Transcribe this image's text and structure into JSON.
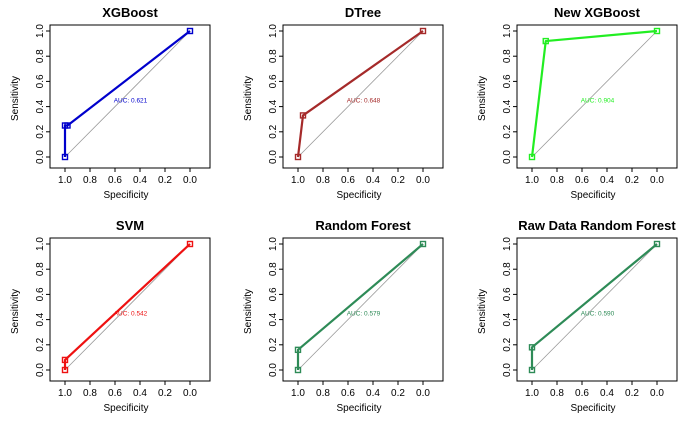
{
  "chart_data": [
    {
      "type": "line",
      "title": "XGBoost",
      "xlabel": "Specificity",
      "ylabel": "Sensitivity",
      "xlim": [
        1.0,
        0.0
      ],
      "ylim": [
        0.0,
        1.0
      ],
      "x_ticks": [
        "1.0",
        "0.8",
        "0.6",
        "0.4",
        "0.2",
        "0.0"
      ],
      "y_ticks": [
        "0.0",
        "0.2",
        "0.4",
        "0.6",
        "0.8",
        "1.0"
      ],
      "color": "#0000cc",
      "series": [
        {
          "x": [
            1.0,
            1.0,
            0.98,
            0.0
          ],
          "y": [
            0.0,
            0.25,
            0.25,
            1.0
          ]
        }
      ],
      "diagonal": true,
      "annotation": "AUC: 0.621"
    },
    {
      "type": "line",
      "title": "DTree",
      "xlabel": "Specificity",
      "ylabel": "Sensitivity",
      "xlim": [
        1.0,
        0.0
      ],
      "ylim": [
        0.0,
        1.0
      ],
      "x_ticks": [
        "1.0",
        "0.8",
        "0.6",
        "0.4",
        "0.2",
        "0.0"
      ],
      "y_ticks": [
        "0.0",
        "0.2",
        "0.4",
        "0.6",
        "0.8",
        "1.0"
      ],
      "color": "#a52a2a",
      "series": [
        {
          "x": [
            1.0,
            0.96,
            0.0
          ],
          "y": [
            0.0,
            0.33,
            1.0
          ]
        }
      ],
      "diagonal": true,
      "annotation": "AUC: 0.648"
    },
    {
      "type": "line",
      "title": "New XGBoost",
      "xlabel": "Specificity",
      "ylabel": "Sensitivity",
      "xlim": [
        1.0,
        0.0
      ],
      "ylim": [
        0.0,
        1.0
      ],
      "x_ticks": [
        "1.0",
        "0.8",
        "0.6",
        "0.4",
        "0.2",
        "0.0"
      ],
      "y_ticks": [
        "0.0",
        "0.2",
        "0.4",
        "0.6",
        "0.8",
        "1.0"
      ],
      "color": "#22ee22",
      "series": [
        {
          "x": [
            1.0,
            0.89,
            0.0
          ],
          "y": [
            0.0,
            0.92,
            1.0
          ]
        }
      ],
      "diagonal": true,
      "annotation": "AUC: 0.904"
    },
    {
      "type": "line",
      "title": "SVM",
      "xlabel": "Specificity",
      "ylabel": "Sensitivity",
      "xlim": [
        1.0,
        0.0
      ],
      "ylim": [
        0.0,
        1.0
      ],
      "x_ticks": [
        "1.0",
        "0.8",
        "0.6",
        "0.4",
        "0.2",
        "0.0"
      ],
      "y_ticks": [
        "0.0",
        "0.2",
        "0.4",
        "0.6",
        "0.8",
        "1.0"
      ],
      "color": "#ee1111",
      "series": [
        {
          "x": [
            1.0,
            1.0,
            0.0
          ],
          "y": [
            0.0,
            0.08,
            1.0
          ]
        }
      ],
      "diagonal": true,
      "annotation": "AUC: 0.542"
    },
    {
      "type": "line",
      "title": "Random Forest",
      "xlabel": "Specificity",
      "ylabel": "Sensitivity",
      "xlim": [
        1.0,
        0.0
      ],
      "ylim": [
        0.0,
        1.0
      ],
      "x_ticks": [
        "1.0",
        "0.8",
        "0.6",
        "0.4",
        "0.2",
        "0.0"
      ],
      "y_ticks": [
        "0.0",
        "0.2",
        "0.4",
        "0.6",
        "0.8",
        "1.0"
      ],
      "color": "#2e8b57",
      "series": [
        {
          "x": [
            1.0,
            1.0,
            0.0
          ],
          "y": [
            0.0,
            0.16,
            1.0
          ]
        }
      ],
      "diagonal": true,
      "annotation": "AUC: 0.579"
    },
    {
      "type": "line",
      "title": "Raw Data Random Forest",
      "xlabel": "Specificity",
      "ylabel": "Sensitivity",
      "xlim": [
        1.0,
        0.0
      ],
      "ylim": [
        0.0,
        1.0
      ],
      "x_ticks": [
        "1.0",
        "0.8",
        "0.6",
        "0.4",
        "0.2",
        "0.0"
      ],
      "y_ticks": [
        "0.0",
        "0.2",
        "0.4",
        "0.6",
        "0.8",
        "1.0"
      ],
      "color": "#2e8b57",
      "series": [
        {
          "x": [
            1.0,
            1.0,
            0.0
          ],
          "y": [
            0.0,
            0.18,
            1.0
          ]
        }
      ],
      "diagonal": true,
      "annotation": "AUC: 0.590"
    }
  ]
}
